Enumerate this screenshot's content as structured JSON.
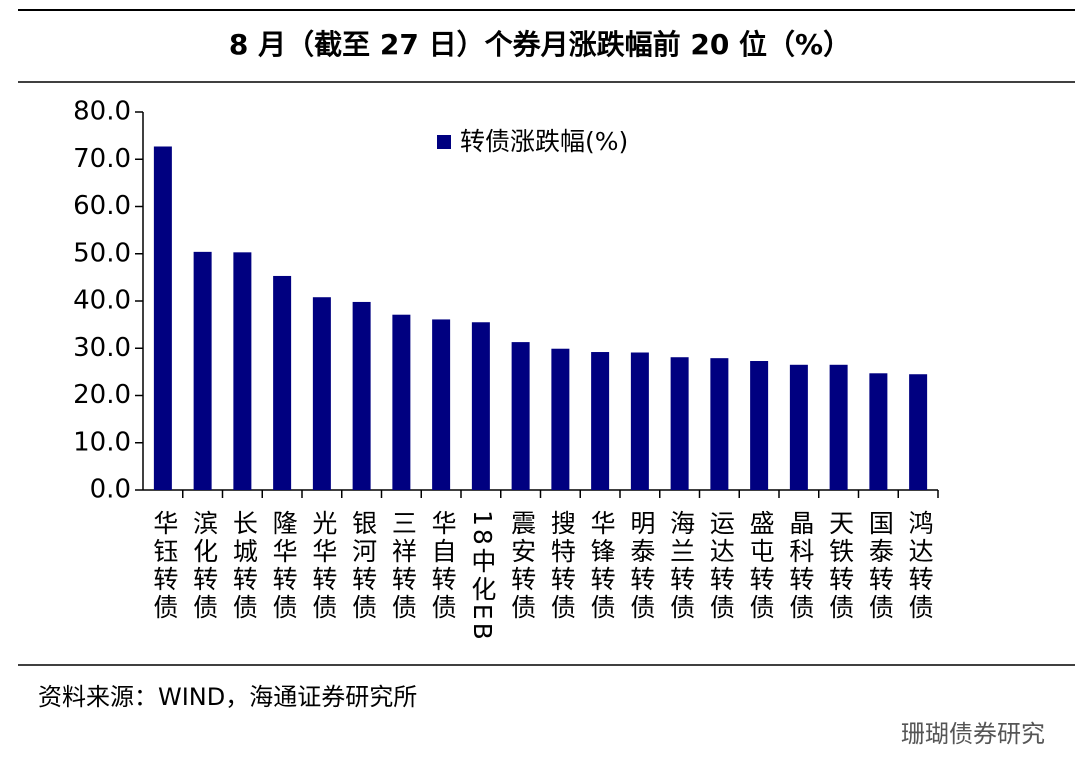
{
  "chart_data": {
    "type": "bar",
    "title": "8 月（截至 27 日）个券月涨跌幅前 20 位（%）",
    "categories": [
      "华钰转债",
      "滨化转债",
      "长城转债",
      "隆华转债",
      "光华转债",
      "银河转债",
      "三祥转债",
      "华自转债",
      "18中化EB",
      "震安转债",
      "搜特转债",
      "华锋转债",
      "明泰转债",
      "海兰转债",
      "运达转债",
      "盛屯转债",
      "晶科转债",
      "天铁转债",
      "国泰转债",
      "鸿达转债"
    ],
    "series": [
      {
        "name": "转债涨跌幅(%)",
        "color": "#000080",
        "values": [
          72.7,
          50.4,
          50.3,
          45.3,
          40.8,
          39.8,
          37.1,
          36.1,
          35.5,
          31.3,
          29.9,
          29.2,
          29.1,
          28.1,
          27.9,
          27.3,
          26.5,
          26.5,
          24.7,
          24.5
        ]
      }
    ],
    "ylim": [
      0,
      80
    ],
    "yticks": [
      {
        "value": 0,
        "label": "0.0"
      },
      {
        "value": 10,
        "label": "10.0"
      },
      {
        "value": 20,
        "label": "20.0"
      },
      {
        "value": 30,
        "label": "30.0"
      },
      {
        "value": 40,
        "label": "40.0"
      },
      {
        "value": 50,
        "label": "50.0"
      },
      {
        "value": 60,
        "label": "60.0"
      },
      {
        "value": 70,
        "label": "70.0"
      },
      {
        "value": 80,
        "label": "80.0"
      }
    ],
    "grid": false,
    "legend": "top",
    "source": "资料来源：WIND，海通证券研究所",
    "watermark": "珊瑚债券研究"
  }
}
